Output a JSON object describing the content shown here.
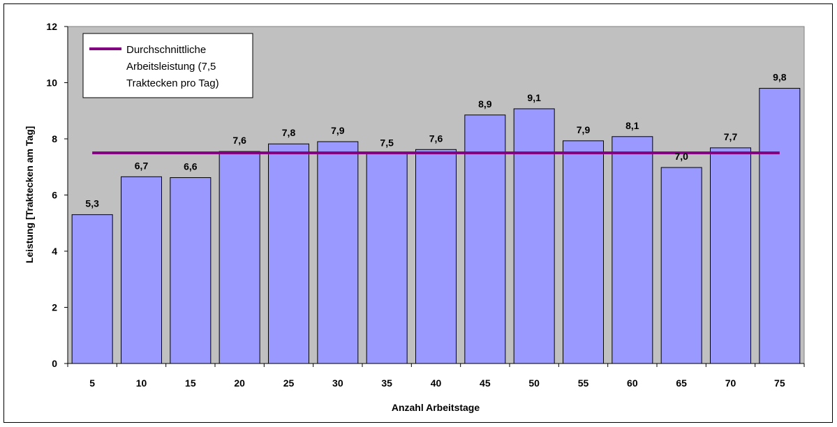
{
  "chart_data": {
    "type": "bar",
    "title": "",
    "xlabel": "Anzahl Arbeitstage",
    "ylabel": "Leistung [Traktecken am Tag]",
    "categories": [
      "5",
      "10",
      "15",
      "20",
      "25",
      "30",
      "35",
      "40",
      "45",
      "50",
      "55",
      "60",
      "65",
      "70",
      "75"
    ],
    "values": [
      5.3,
      6.65,
      6.62,
      7.55,
      7.82,
      7.9,
      7.47,
      7.62,
      8.85,
      9.07,
      7.93,
      8.08,
      6.98,
      7.68,
      9.8
    ],
    "data_labels": [
      "5,3",
      "6,7",
      "6,6",
      "7,6",
      "7,8",
      "7,9",
      "7,5",
      "7,6",
      "8,9",
      "9,1",
      "7,9",
      "8,1",
      "7,0",
      "7,7",
      "9,8"
    ],
    "yticks": [
      0,
      2,
      4,
      6,
      8,
      10,
      12
    ],
    "ylim": [
      0,
      12
    ],
    "reference_line": {
      "value": 7.5,
      "name": "Durchschnittliche Arbeitsleistung (7,5 Traktecken pro Tag)",
      "legend_lines": [
        "Durchschnittliche",
        "Arbeitsleistung (7,5",
        "Traktecken pro Tag)"
      ]
    },
    "grid": false,
    "legend_position": "top-left",
    "colors": {
      "plot_background": "#c0c0c0",
      "bar_fill": "#9999ff",
      "bar_stroke": "#000000",
      "reference_line": "#800080"
    }
  }
}
